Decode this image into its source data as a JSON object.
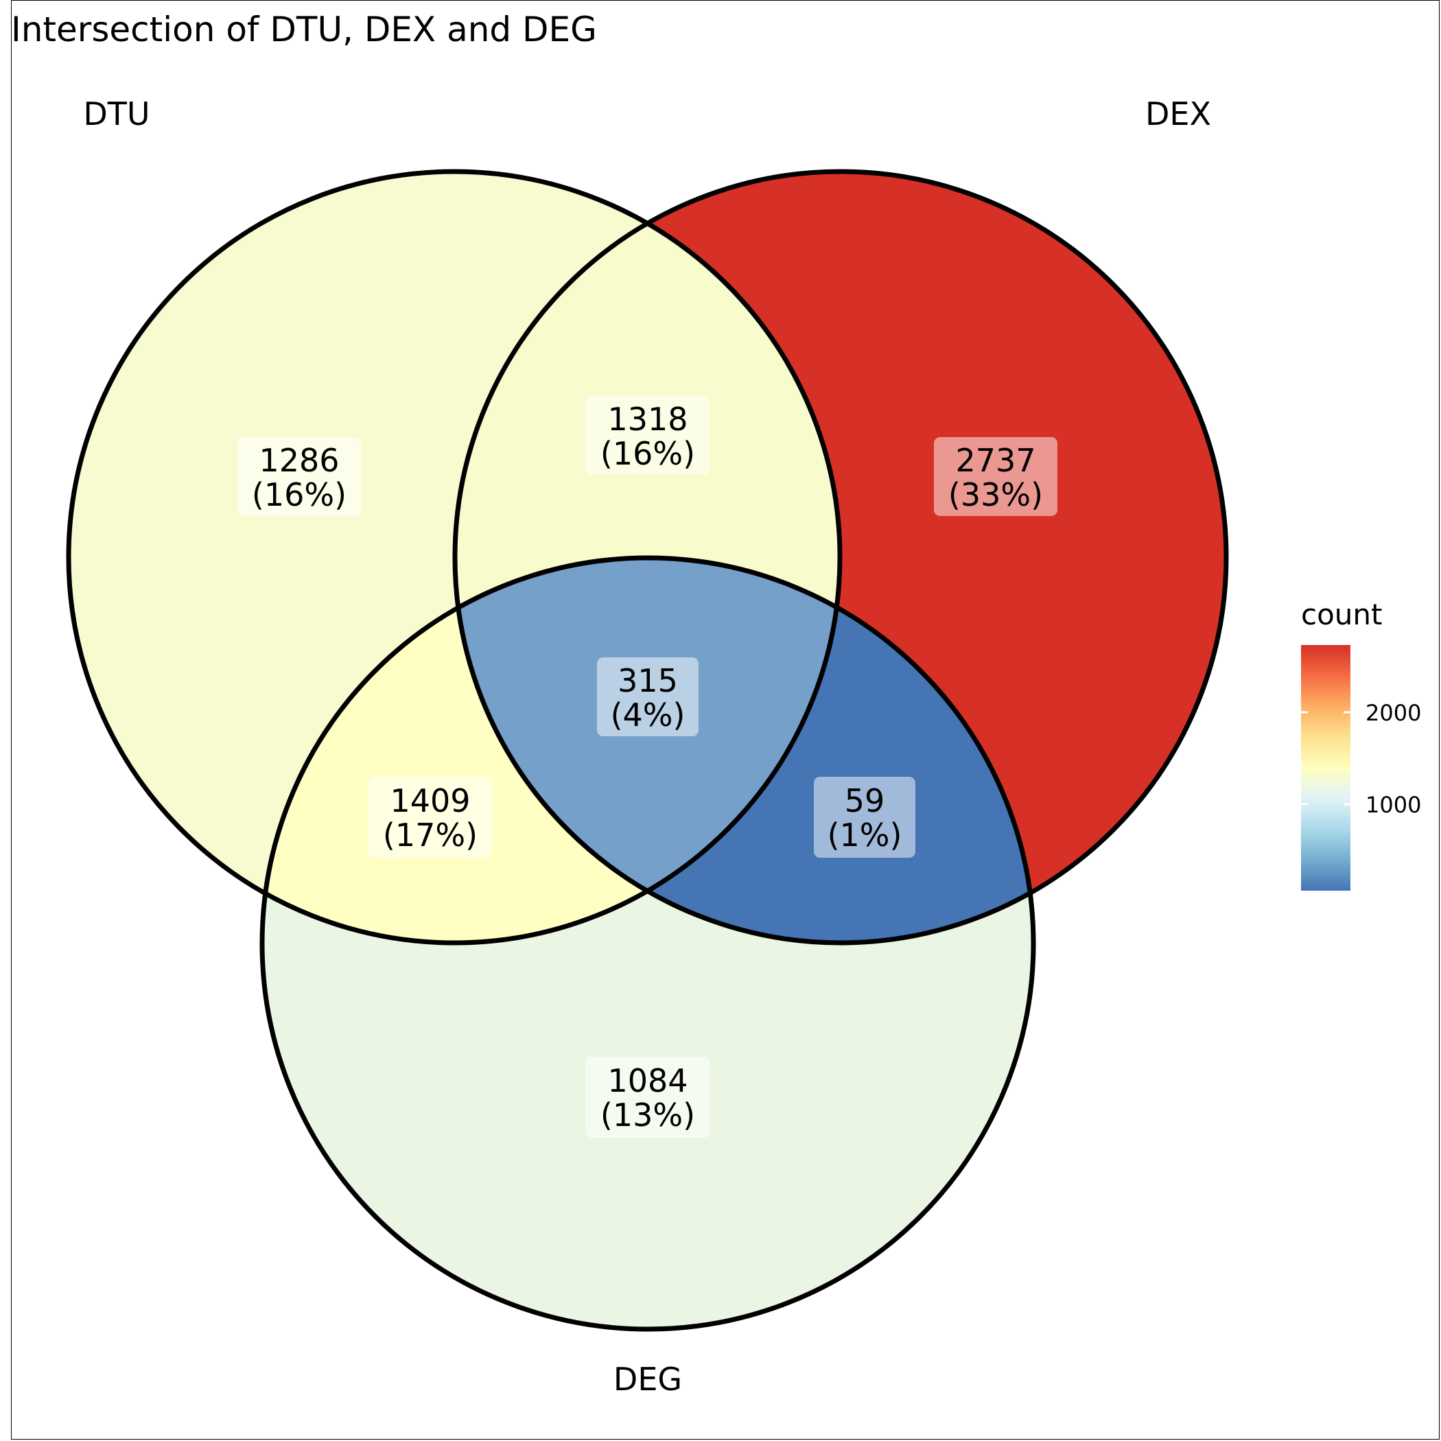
{
  "title": "Intersection of DTU, DEX and DEG",
  "sets": {
    "dtu": "DTU",
    "dex": "DEX",
    "deg": "DEG"
  },
  "regions": {
    "dtu_only": {
      "count": "1286",
      "percent": "(16%)",
      "value": 1286,
      "color": "#F8FBD0"
    },
    "dtu_dex": {
      "count": "1318",
      "percent": "(16%)",
      "value": 1318,
      "color": "#F8FBCB"
    },
    "dex_only": {
      "count": "2737",
      "percent": "(33%)",
      "value": 2737,
      "color": "#D73027"
    },
    "all_three": {
      "count": "315",
      "percent": "(4%)",
      "value": 315,
      "color": "#74A0CA"
    },
    "dtu_deg": {
      "count": "1409",
      "percent": "(17%)",
      "value": 1409,
      "color": "#FFFFC4"
    },
    "dex_deg": {
      "count": "59",
      "percent": "(1%)",
      "value": 59,
      "color": "#4575B4"
    },
    "deg_only": {
      "count": "1084",
      "percent": "(13%)",
      "value": 1084,
      "color": "#EAF5E3"
    }
  },
  "legend": {
    "title": "count",
    "ticks": [
      "2000",
      "1000"
    ],
    "gradient_colors": [
      "#D73027",
      "#F46D43",
      "#FDAE61",
      "#FEE090",
      "#FFFFBF",
      "#E0F3F8",
      "#ABD9E9",
      "#74ADD1",
      "#4575B4"
    ]
  }
}
